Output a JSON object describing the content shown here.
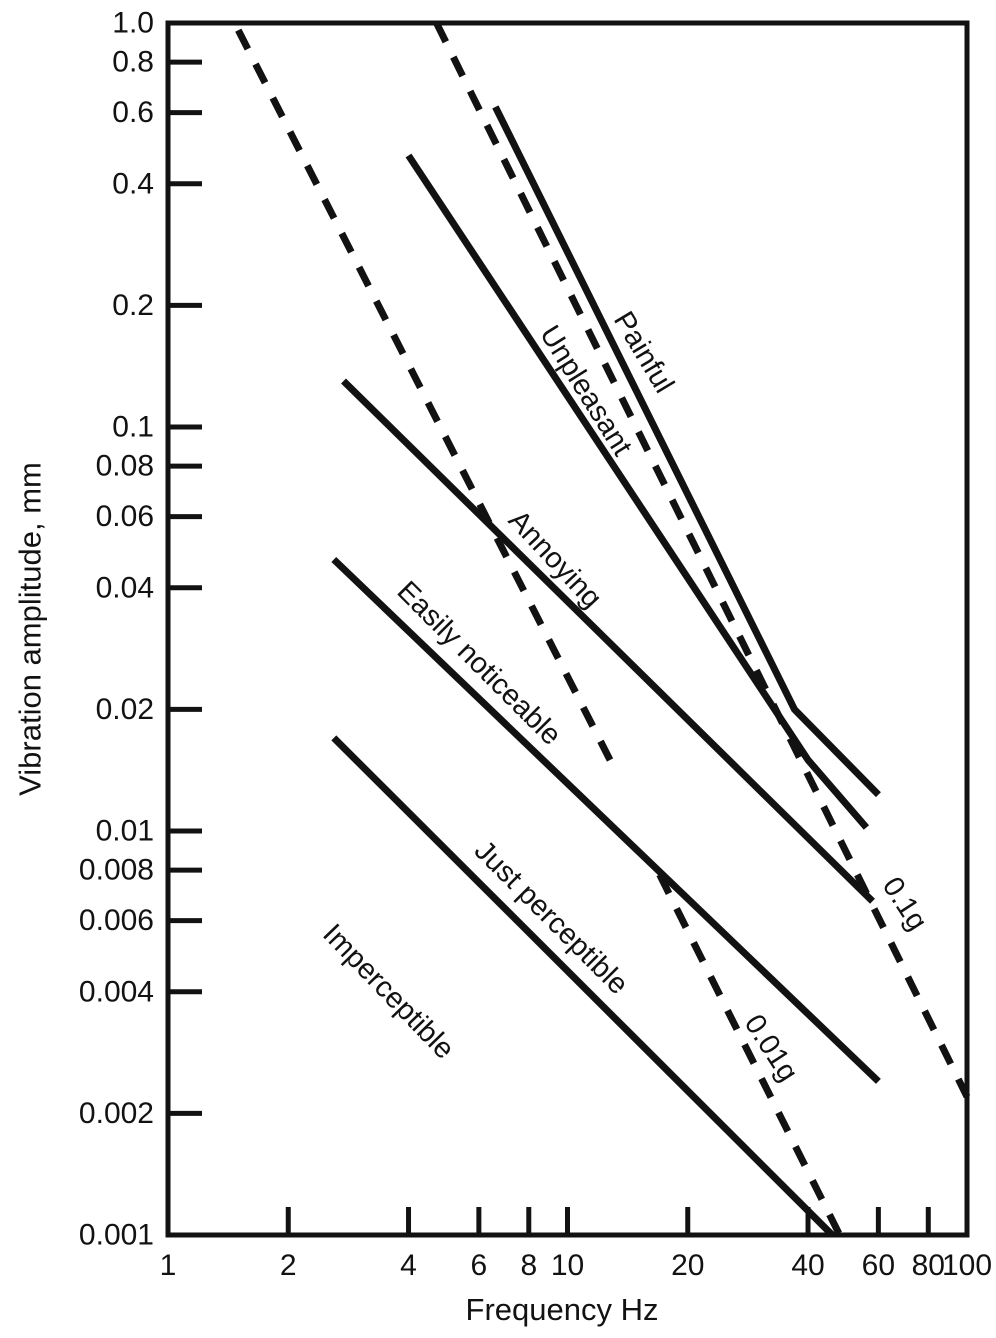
{
  "chart_data": {
    "type": "line",
    "title": "",
    "xlabel": "Frequency Hz",
    "ylabel": "Vibration amplitude, mm",
    "x_scale": "log",
    "y_scale": "log",
    "xlim": [
      1,
      100
    ],
    "ylim": [
      0.001,
      1.0
    ],
    "grid": false,
    "legend": "none",
    "x_ticks": [
      {
        "value": 1,
        "label": "1"
      },
      {
        "value": 2,
        "label": "2"
      },
      {
        "value": 4,
        "label": "4"
      },
      {
        "value": 6,
        "label": "6"
      },
      {
        "value": 8,
        "label": "8"
      },
      {
        "value": 10,
        "label": "10"
      },
      {
        "value": 20,
        "label": "20"
      },
      {
        "value": 40,
        "label": "40"
      },
      {
        "value": 60,
        "label": "60"
      },
      {
        "value": 80,
        "label": "80"
      },
      {
        "value": 100,
        "label": "100"
      }
    ],
    "y_ticks": [
      {
        "value": 1.0,
        "label": "1.0"
      },
      {
        "value": 0.8,
        "label": "0.8"
      },
      {
        "value": 0.6,
        "label": "0.6"
      },
      {
        "value": 0.4,
        "label": "0.4"
      },
      {
        "value": 0.2,
        "label": "0.2"
      },
      {
        "value": 0.1,
        "label": "0.1"
      },
      {
        "value": 0.08,
        "label": "0.08"
      },
      {
        "value": 0.06,
        "label": "0.06"
      },
      {
        "value": 0.04,
        "label": "0.04"
      },
      {
        "value": 0.02,
        "label": "0.02"
      },
      {
        "value": 0.01,
        "label": "0.01"
      },
      {
        "value": 0.008,
        "label": "0.008"
      },
      {
        "value": 0.006,
        "label": "0.006"
      },
      {
        "value": 0.004,
        "label": "0.004"
      },
      {
        "value": 0.002,
        "label": "0.002"
      },
      {
        "value": 0.001,
        "label": "0.001"
      }
    ],
    "series": [
      {
        "name": "painful-boundary",
        "style": "solid",
        "points": [
          [
            6.6,
            0.62
          ],
          [
            37,
            0.02
          ],
          [
            60,
            0.0123
          ]
        ]
      },
      {
        "name": "unpleasant-boundary",
        "style": "solid",
        "points": [
          [
            4.0,
            0.47
          ],
          [
            40,
            0.015
          ],
          [
            56,
            0.0102
          ]
        ]
      },
      {
        "name": "annoying-boundary",
        "style": "solid",
        "points": [
          [
            2.75,
            0.13
          ],
          [
            58,
            0.0067
          ]
        ]
      },
      {
        "name": "easily-noticeable-boundary",
        "style": "solid",
        "points": [
          [
            2.6,
            0.047
          ],
          [
            60,
            0.0024
          ]
        ]
      },
      {
        "name": "just-perceptible-boundary",
        "style": "solid",
        "points": [
          [
            2.6,
            0.017
          ],
          [
            46,
            0.001
          ]
        ]
      },
      {
        "name": "accel-0p01g-upper",
        "style": "dashed",
        "points": [
          [
            1.5,
            0.96
          ],
          [
            13,
            0.0145
          ]
        ]
      },
      {
        "name": "accel-0p01g-lower",
        "style": "dashed",
        "points": [
          [
            17,
            0.0078
          ],
          [
            48,
            0.001
          ]
        ]
      },
      {
        "name": "accel-0p1g",
        "style": "dashed",
        "points": [
          [
            4.7,
            1.0
          ],
          [
            100,
            0.0022
          ]
        ]
      }
    ],
    "region_labels": [
      {
        "text": "Painful",
        "freq": 15.5,
        "amp": 0.153,
        "angle": 59
      },
      {
        "text": "Unpleasant",
        "freq": 11.1,
        "amp": 0.123,
        "angle": 58
      },
      {
        "text": "Annoying",
        "freq": 9.3,
        "amp": 0.047,
        "angle": 47
      },
      {
        "text": "Easily noticeable",
        "freq": 6.0,
        "amp": 0.026,
        "angle": 45
      },
      {
        "text": "Just perceptible",
        "freq": 9.1,
        "amp": 0.0061,
        "angle": 45
      },
      {
        "text": "Imperceptible",
        "freq": 3.56,
        "amp": 0.004,
        "angle": 46
      },
      {
        "text": "0.1g",
        "freq": 69.8,
        "amp": 0.0066,
        "angle": 57
      },
      {
        "text": "0.01g",
        "freq": 32.3,
        "amp": 0.0029,
        "angle": 57
      }
    ],
    "colors": {
      "line": "#121212",
      "text": "#121212",
      "background": "#ffffff"
    }
  }
}
